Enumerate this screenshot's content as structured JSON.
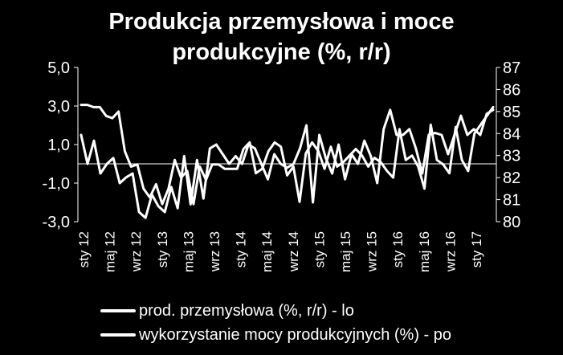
{
  "chart_data": {
    "type": "line",
    "title_line1": "Produkcja przemysłowa i moce",
    "title_line2": "produkcyjne (%, r/r)",
    "x_tick_labels": [
      "sty 12",
      "maj 12",
      "wrz 12",
      "sty 13",
      "maj 13",
      "wrz 13",
      "sty 14",
      "maj 14",
      "wrz 14",
      "sty 15",
      "maj 15",
      "wrz 15",
      "sty 16",
      "maj 16",
      "wrz 16",
      "sty 17"
    ],
    "left_axis": {
      "ylim": [
        -3,
        5
      ],
      "ticks": [
        "5,0",
        "3,0",
        "1,0",
        "-1,0",
        "-3,0"
      ],
      "tick_values": [
        5,
        3,
        1,
        -1,
        -3
      ]
    },
    "right_axis": {
      "ylim": [
        80,
        87
      ],
      "ticks": [
        "87",
        "86",
        "85",
        "84",
        "83",
        "82",
        "81",
        "80"
      ],
      "tick_values": [
        87,
        86,
        85,
        84,
        83,
        82,
        81,
        80
      ]
    },
    "series": [
      {
        "name": "prod. przemysłowa (%, r/r) - lo",
        "axis": "left",
        "values": [
          1.5,
          0.0,
          1.2,
          -0.5,
          0.0,
          0.3,
          -1.0,
          -0.7,
          -0.5,
          -2.5,
          -2.8,
          -1.6,
          -2.2,
          -2.5,
          -1.2,
          -2.3,
          0.4,
          -2.1,
          0.2,
          -1.8,
          0.8,
          1.0,
          0.5,
          0.0,
          0.4,
          0.0,
          1.0,
          0.8,
          0.0,
          -0.8,
          0.5,
          0.0,
          -0.2,
          0.0,
          0.8,
          2.0,
          -2.0,
          1.5,
          0.3,
          -0.5,
          1.0,
          -0.8,
          0.5,
          0.0,
          1.2,
          0.4,
          -1.0,
          1.8,
          2.8,
          1.5,
          1.5,
          1.8,
          0.8,
          -0.5,
          1.5,
          1.6,
          1.5,
          0.5,
          1.5,
          2.5,
          1.5,
          1.8,
          1.5,
          2.6,
          2.8
        ]
      },
      {
        "name": "wykorzystanie mocy produkcyjnych (%) - po",
        "axis": "right",
        "values": [
          85.3,
          85.3,
          85.2,
          85.2,
          84.8,
          84.7,
          85.0,
          83.2,
          82.5,
          82.6,
          81.5,
          81.1,
          81.7,
          80.8,
          81.5,
          82.8,
          82.0,
          82.3,
          80.8,
          82.5,
          81.9,
          82.6,
          82.6,
          82.4,
          82.4,
          82.4,
          83.3,
          83.6,
          82.2,
          82.4,
          83.2,
          83.6,
          83.4,
          82.1,
          82.5,
          80.9,
          83.1,
          83.6,
          83.2,
          82.4,
          83.4,
          82.5,
          82.7,
          83.0,
          83.3,
          83.0,
          82.5,
          82.9,
          82.7,
          82.3,
          82.0,
          84.2,
          82.8,
          83.0,
          82.5,
          81.5,
          84.4,
          82.8,
          82.6,
          82.2,
          84.3,
          82.8,
          82.3,
          84.0,
          84.4,
          84.8,
          85.2
        ]
      }
    ],
    "grid": false,
    "legend_position": "bottom",
    "colors": {
      "background": "#000000",
      "foreground": "#ffffff"
    }
  }
}
